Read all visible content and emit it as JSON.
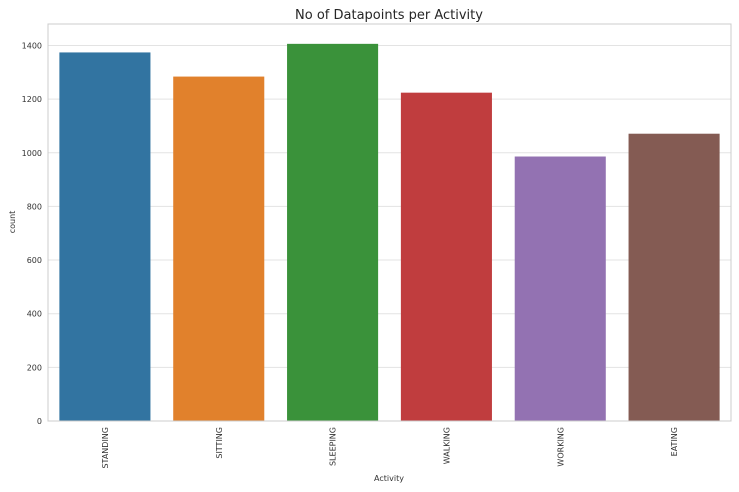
{
  "chart_data": {
    "type": "bar",
    "title": "No of Datapoints per Activity",
    "xlabel": "Activity",
    "ylabel": "count",
    "categories": [
      "STANDING",
      "SITTING",
      "SLEEPING",
      "WALKING",
      "WORKING",
      "EATING"
    ],
    "values": [
      1374,
      1284,
      1406,
      1224,
      986,
      1071
    ],
    "colors": [
      "#3274a1",
      "#e1812c",
      "#3a923a",
      "#c03d3e",
      "#9372b2",
      "#845b53"
    ],
    "ylim": [
      0,
      1480
    ],
    "yticks": [
      0,
      200,
      400,
      600,
      800,
      1000,
      1200,
      1400
    ],
    "grid": true,
    "legend": "none"
  }
}
